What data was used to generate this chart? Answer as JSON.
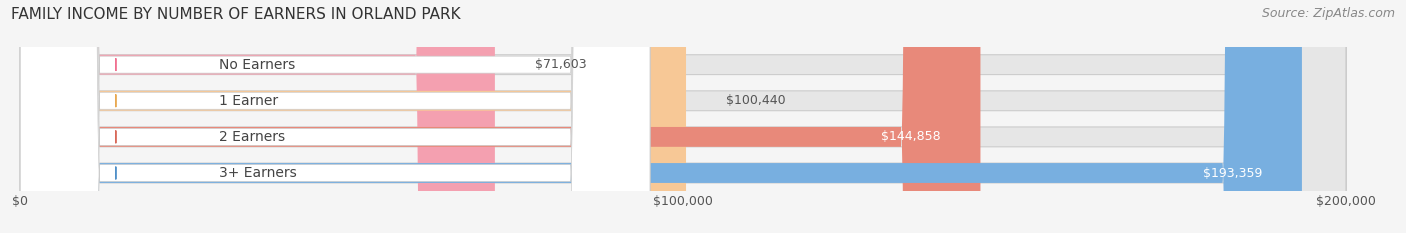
{
  "title": "FAMILY INCOME BY NUMBER OF EARNERS IN ORLAND PARK",
  "source": "Source: ZipAtlas.com",
  "categories": [
    "No Earners",
    "1 Earner",
    "2 Earners",
    "3+ Earners"
  ],
  "values": [
    71603,
    100440,
    144858,
    193359
  ],
  "bar_colors": [
    "#f4a0b0",
    "#f7c896",
    "#e8897a",
    "#78afe0"
  ],
  "dot_colors": [
    "#f07090",
    "#e8a850",
    "#d86858",
    "#5090c8"
  ],
  "value_label_colors": [
    "#555555",
    "#555555",
    "#ffffff",
    "#ffffff"
  ],
  "max_value": 200000,
  "xtick_labels": [
    "$0",
    "$100,000",
    "$200,000"
  ],
  "xtick_values": [
    0,
    100000,
    200000
  ],
  "background_color": "#f5f5f5",
  "bar_bg_color": "#e6e6e6",
  "title_fontsize": 11,
  "source_fontsize": 9,
  "cat_label_fontsize": 10,
  "val_label_fontsize": 9,
  "tick_fontsize": 9,
  "value_threshold_inside": 130000
}
